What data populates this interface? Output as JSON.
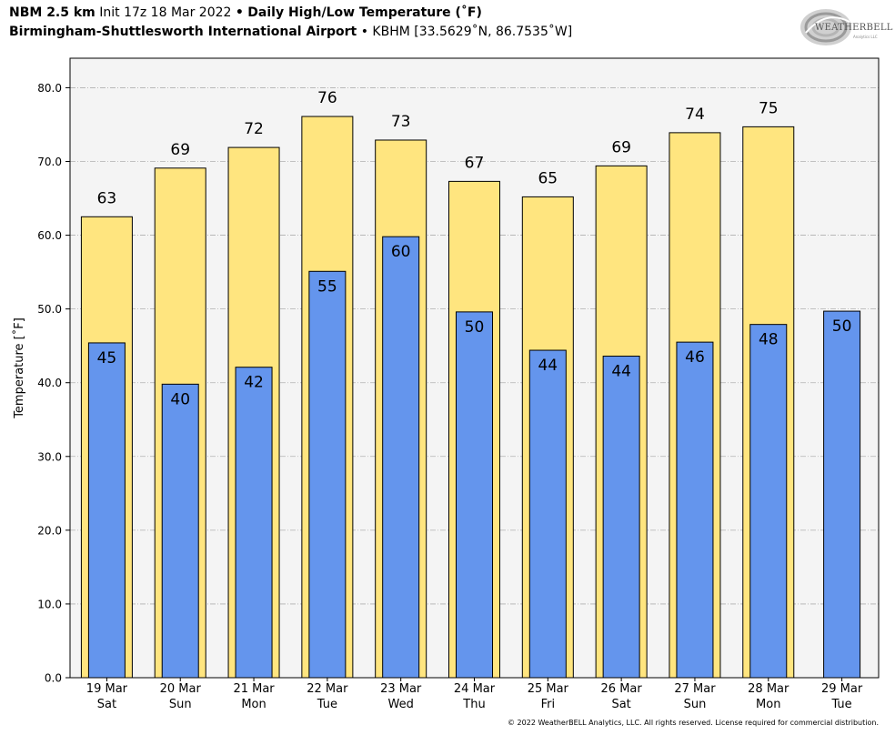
{
  "header": {
    "model": "NBM 2.5 km",
    "init": "Init 17z 18 Mar 2022",
    "bullet": "•",
    "title": "Daily High/Low Temperature (˚F)",
    "station": "Birmingham-Shuttlesworth International Airport",
    "station_info": "KBHM [33.5629˚N, 86.7535˚W]"
  },
  "logo": {
    "text": "WEATHERBELL",
    "subtext": "Analytics LLC"
  },
  "footer": "© 2022 WeatherBELL Analytics, LLC. All rights reserved. License required for commercial distribution.",
  "colors": {
    "high_bar": "#FFE57F",
    "low_bar": "#6495ED",
    "plot_bg": "#F4F4F4",
    "grid": "#B0B0B0"
  },
  "chart_data": {
    "type": "bar",
    "ylabel": "Temperature [˚F]",
    "ylim": [
      0,
      84
    ],
    "yticks": [
      "0.0",
      "10.0",
      "20.0",
      "30.0",
      "40.0",
      "50.0",
      "60.0",
      "70.0",
      "80.0"
    ],
    "grid": true,
    "categories": [
      [
        "19 Mar",
        "Sat"
      ],
      [
        "20 Mar",
        "Sun"
      ],
      [
        "21 Mar",
        "Mon"
      ],
      [
        "22 Mar",
        "Tue"
      ],
      [
        "23 Mar",
        "Wed"
      ],
      [
        "24 Mar",
        "Thu"
      ],
      [
        "25 Mar",
        "Fri"
      ],
      [
        "26 Mar",
        "Sat"
      ],
      [
        "27 Mar",
        "Sun"
      ],
      [
        "28 Mar",
        "Mon"
      ],
      [
        "29 Mar",
        "Tue"
      ]
    ],
    "series": [
      {
        "name": "High",
        "values": [
          62.5,
          69.1,
          71.9,
          76.1,
          72.9,
          67.3,
          65.2,
          69.4,
          73.9,
          74.7,
          null
        ],
        "labels": [
          "63",
          "69",
          "72",
          "76",
          "73",
          "67",
          "65",
          "69",
          "74",
          "75",
          null
        ]
      },
      {
        "name": "Low",
        "values": [
          45.4,
          39.8,
          42.1,
          55.1,
          59.8,
          49.6,
          44.4,
          43.6,
          45.5,
          47.9,
          49.7
        ],
        "labels": [
          "45",
          "40",
          "42",
          "55",
          "60",
          "50",
          "44",
          "44",
          "46",
          "48",
          "50"
        ]
      }
    ]
  }
}
